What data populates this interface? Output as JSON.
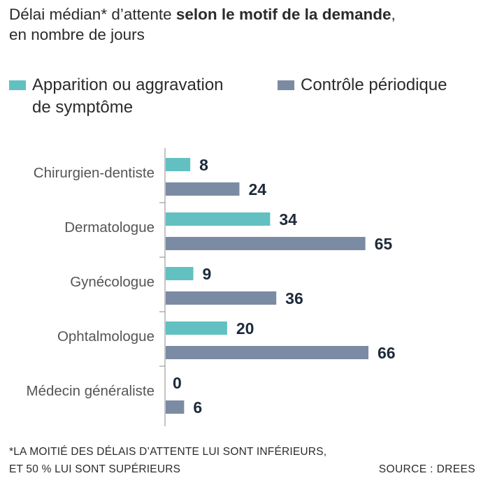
{
  "title": {
    "part1": "Délai médian* d’attente ",
    "bold": "selon le motif de la demande",
    "part2": ",",
    "line2": "en nombre de jours"
  },
  "legend": {
    "series1_line1": "Apparition ou aggravation",
    "series1_line2": "de symptôme",
    "series2": "Contrôle périodique"
  },
  "footnote": {
    "line1": "*LA MOITIÉ DES DÉLAIS D’ATTENTE LUI SONT INFÉRIEURS,",
    "line2": "ET 50 % LUI SONT SUPÉRIEURS"
  },
  "source": "SOURCE : DREES",
  "colors": {
    "series1": "#62c0c0",
    "series2": "#7b8ba3",
    "label": "#1e2a3a",
    "axis": "#8a8a8a"
  },
  "chart_data": {
    "type": "bar",
    "orientation": "horizontal",
    "categories": [
      "Chirurgien-dentiste",
      "Dermatologue",
      "Gynécologue",
      "Ophtalmologue",
      "Médecin généraliste"
    ],
    "series": [
      {
        "name": "Apparition ou aggravation de symptôme",
        "values": [
          8,
          34,
          9,
          20,
          0
        ]
      },
      {
        "name": "Contrôle périodique",
        "values": [
          24,
          65,
          36,
          66,
          6
        ]
      }
    ],
    "xlim": [
      0,
      66
    ],
    "grid": false,
    "legend_position": "top",
    "data_labels": true
  }
}
